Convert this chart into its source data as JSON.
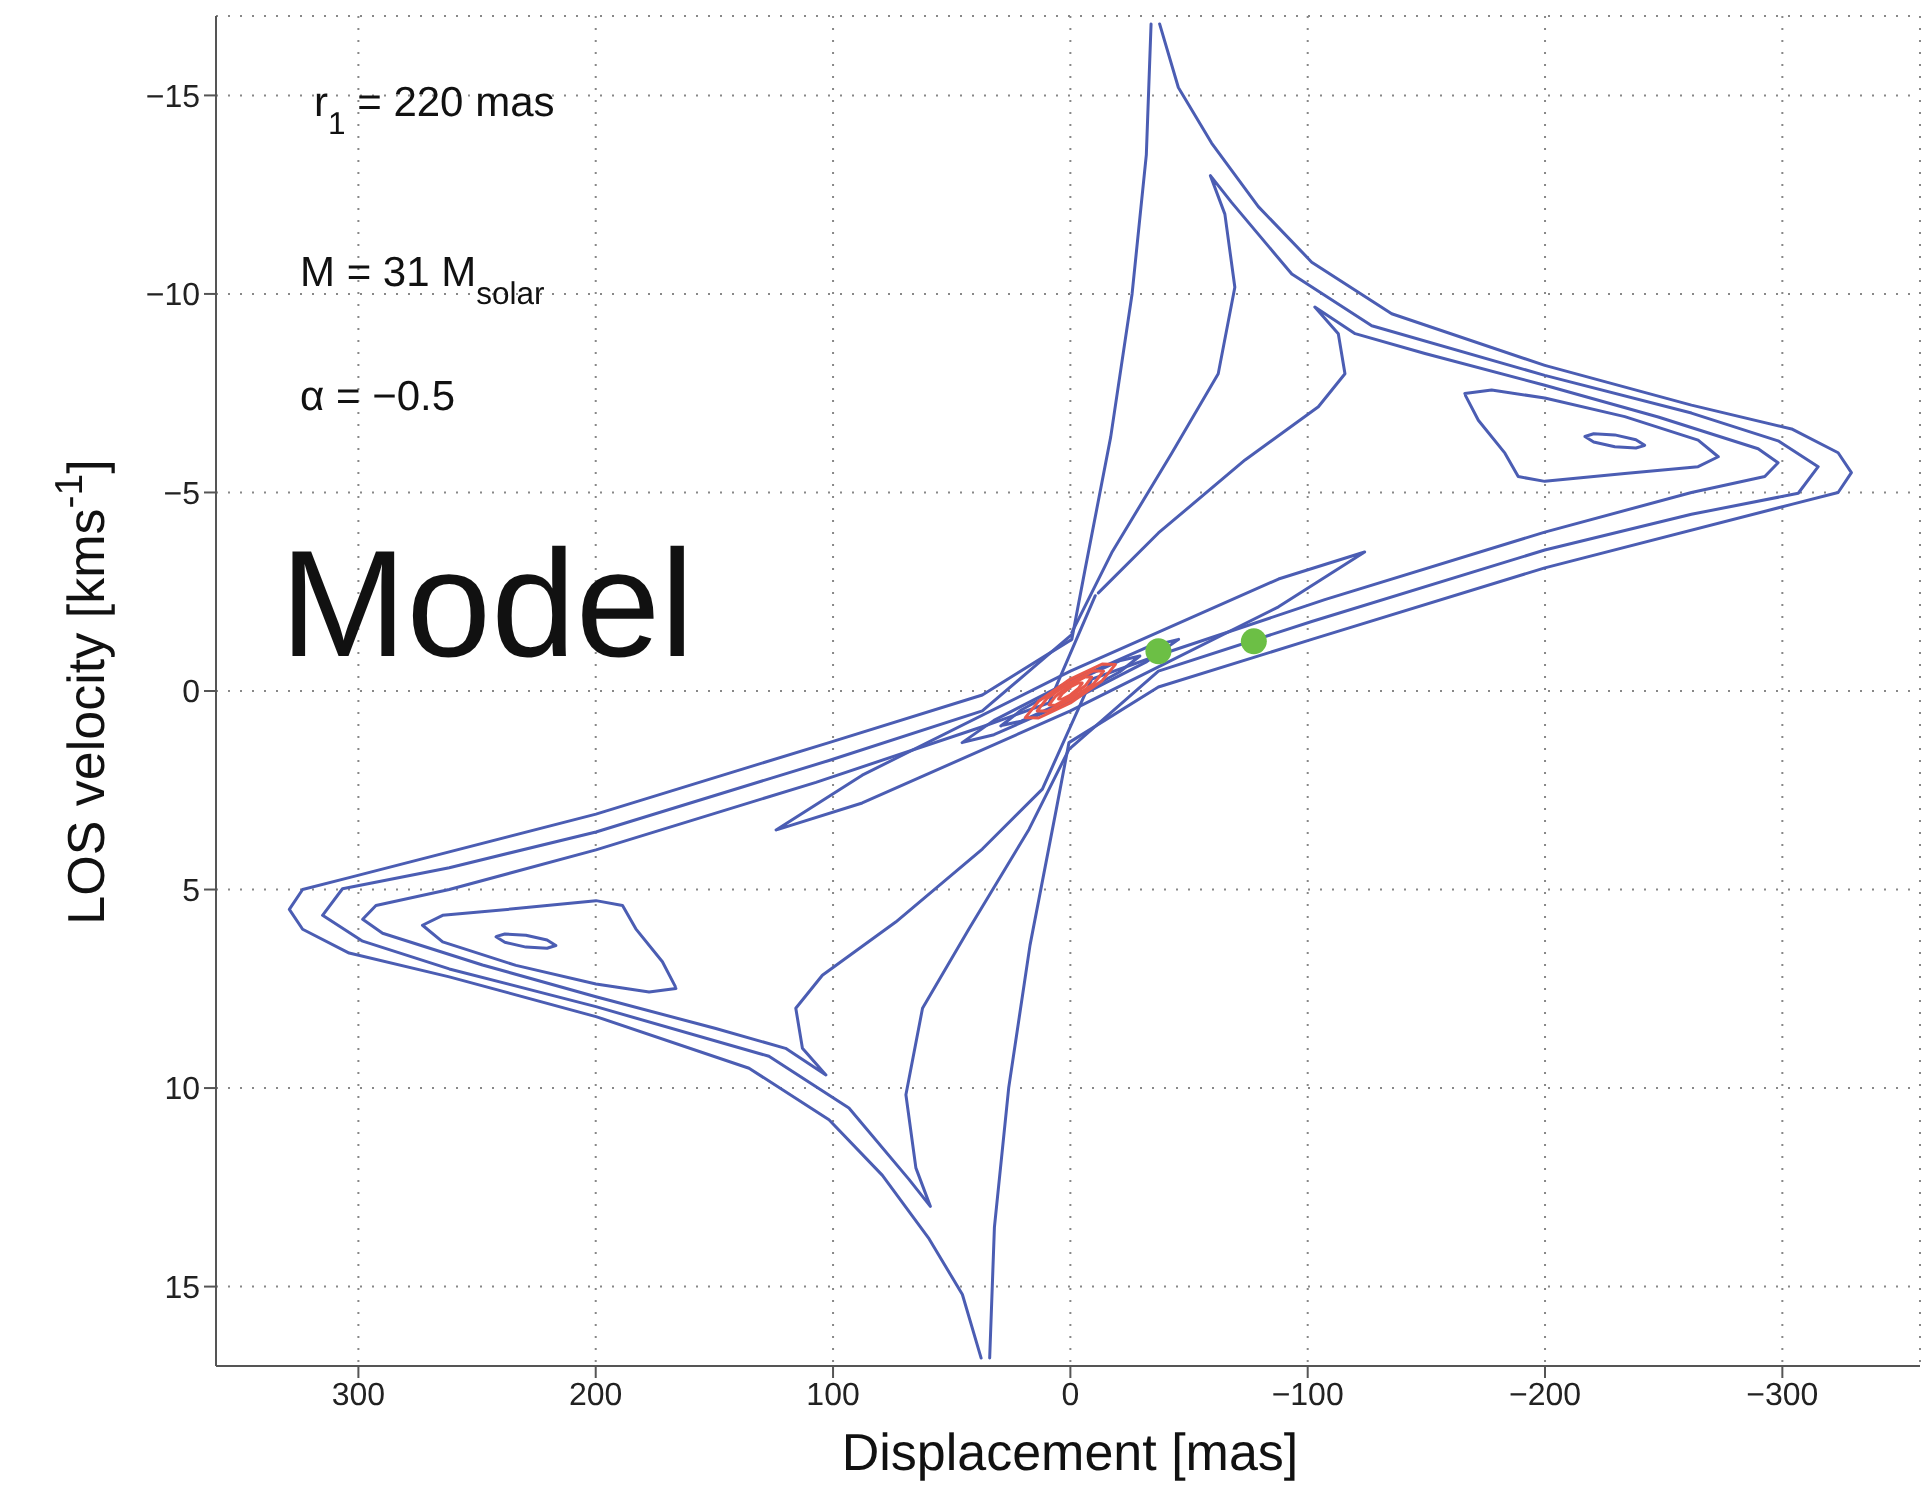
{
  "chart_data": {
    "type": "line",
    "xlabel": "Displacement [mas]",
    "ylabel": "LOS velocity [kms$^{-1}$]",
    "annotations": [
      "r$_{1}$ = 220 mas",
      "M = 31 M$_{solar}$",
      "α = −0.5",
      "Model"
    ],
    "xlim": [
      360,
      -358
    ],
    "xticks": [
      300,
      200,
      100,
      0,
      -100,
      -200,
      -300
    ],
    "ylim": [
      17,
      -17
    ],
    "yticks": [
      -15,
      -10,
      -5,
      0,
      5,
      10,
      15
    ],
    "grid": true,
    "marker": "none",
    "series": [
      {
        "color": "#4b5db3",
        "x": [
          -37.6,
          -45.5,
          -59.5,
          -79.2,
          -101.7,
          -135.4,
          -199.9,
          -261.7,
          -303.9,
          -323.5,
          -329.1,
          -323.5,
          -303.9,
          -199.9,
          -101.7,
          -37.1,
          0.6,
          6,
          17,
          26,
          32,
          34
        ],
        "values": [
          -16.8,
          -15.2,
          -13.8,
          -12.2,
          -10.8,
          -9.5,
          -8.2,
          -7.2,
          -6.6,
          -6.0,
          -5.5,
          -5.0,
          -4.7,
          -3.1,
          -1.3,
          -0.1,
          1.3,
          3.0,
          6.4,
          10.0,
          13.5,
          16.8
        ]
      },
      {
        "color": "#4b5db3",
        "x": [
          37.6,
          45.5,
          59.5,
          79.2,
          101.7,
          135.4,
          199.9,
          261.7,
          303.9,
          323.5,
          329.1,
          323.5,
          303.9,
          199.9,
          101.7,
          37.1,
          -0.6,
          -6,
          -17,
          -26,
          -32,
          -34
        ],
        "values": [
          16.8,
          15.2,
          13.8,
          12.2,
          10.8,
          9.5,
          8.2,
          7.2,
          6.6,
          6.0,
          5.5,
          5.0,
          4.7,
          3.1,
          1.3,
          0.1,
          -1.3,
          -3.0,
          -6.4,
          -10.0,
          -13.5,
          -16.8
        ]
      },
      {
        "color": "#4b5db3",
        "x": [
          -0.6,
          -17.4,
          -42.7,
          -62.3,
          -69.3,
          -65.1,
          -59,
          -68,
          -93.3,
          -127,
          -199.9,
          -261.7,
          -298.2,
          -315.1,
          -306.7,
          -261.7,
          -199.9,
          -101.7,
          -37.1,
          0.6,
          17.4,
          42.7,
          62.3,
          69.3,
          65.1,
          59,
          68,
          93.3,
          127,
          199.9,
          261.7,
          298.2,
          315.1,
          306.7,
          261.7,
          199.9,
          101.7,
          37.1,
          -0.2
        ],
        "values": [
          -1.47,
          -3.48,
          -5.99,
          -7.99,
          -10.17,
          -12.01,
          -12.98,
          -12.3,
          -10.5,
          -9.2,
          -7.95,
          -7.0,
          -6.3,
          -5.65,
          -4.98,
          -4.45,
          -3.55,
          -1.75,
          -0.5,
          1.47,
          3.48,
          5.99,
          7.99,
          10.17,
          12.01,
          12.98,
          12.3,
          10.5,
          9.2,
          7.95,
          7.0,
          6.3,
          5.65,
          4.98,
          4.45,
          3.55,
          1.75,
          0.5,
          -1.4
        ]
      },
      {
        "color": "#4b5db3",
        "x": [
          -11.8,
          -37.1,
          -73.6,
          -104.5,
          -115.7,
          -112.9,
          -103,
          -120,
          -149.4,
          -199.9,
          -247.7,
          -289.8,
          -298.2,
          -292.6,
          -261.7,
          -199.9,
          -107.2,
          -37.1,
          -9,
          11.8,
          37.1,
          73.6,
          104.5,
          115.7,
          112.9,
          103,
          120,
          149.4,
          199.9,
          247.7,
          289.8,
          298.2,
          292.6,
          261.7,
          199.9,
          107.2,
          37.1,
          9,
          -10.5
        ],
        "values": [
          -2.47,
          -3.98,
          -5.82,
          -7.16,
          -7.99,
          -9.0,
          -9.67,
          -9.0,
          -8.5,
          -7.7,
          -6.9,
          -6.1,
          -5.75,
          -5.4,
          -5.0,
          -4.0,
          -2.3,
          -0.9,
          -0.3,
          2.47,
          3.98,
          5.82,
          7.16,
          7.99,
          9.0,
          9.67,
          9.0,
          8.5,
          7.7,
          6.9,
          6.1,
          5.75,
          5.4,
          5.0,
          4.0,
          2.3,
          0.9,
          0.3,
          -2.4
        ]
      },
      {
        "color": "#4b5db3",
        "x": [
          -166.2,
          -177.5,
          -199.9,
          -233.6,
          -264.5,
          -273,
          -264.5,
          -233.6,
          -199.9,
          -188.7,
          -183.1,
          -171.9,
          -166.5
        ],
        "values": [
          -7.49,
          -7.58,
          -7.38,
          -6.91,
          -6.32,
          -5.9,
          -5.65,
          -5.48,
          -5.28,
          -5.4,
          -5.99,
          -6.82,
          -7.44
        ]
      },
      {
        "color": "#4b5db3",
        "x": [
          166.2,
          177.5,
          199.9,
          233.6,
          264.5,
          273,
          264.5,
          233.6,
          199.9,
          188.7,
          183.1,
          171.9,
          166.5
        ],
        "values": [
          7.49,
          7.58,
          7.38,
          6.91,
          6.32,
          5.9,
          5.65,
          5.48,
          5.28,
          5.4,
          5.99,
          6.82,
          7.44
        ]
      },
      {
        "color": "#4b5db3",
        "x": [
          -242,
          -238.3,
          -229.4,
          -220.5,
          -216.8,
          -220.5,
          -229.4,
          -238.3,
          -241.8
        ],
        "values": [
          -6.19,
          -6.33,
          -6.45,
          -6.48,
          -6.41,
          -6.27,
          -6.15,
          -6.12,
          -6.18
        ]
      },
      {
        "color": "#4b5db3",
        "x": [
          242,
          238.3,
          229.4,
          220.5,
          216.8,
          220.5,
          229.4,
          238.3,
          241.8
        ],
        "values": [
          6.19,
          6.33,
          6.45,
          6.48,
          6.41,
          6.27,
          6.15,
          6.12,
          6.18
        ]
      },
      {
        "color": "#4b5db3",
        "x": [
          124,
          87.7,
          0,
          -87.7,
          -124,
          -87.7,
          0,
          87.7,
          123.5
        ],
        "values": [
          3.5,
          2.12,
          -0.5,
          -2.82,
          -3.5,
          -2.12,
          0.5,
          2.82,
          3.49
        ]
      },
      {
        "color": "#4b5db3",
        "x": [
          45.6,
          32.2,
          0,
          -32.2,
          -45.6,
          -32.2,
          0,
          32.2,
          45.3
        ],
        "values": [
          1.3,
          0.74,
          -0.25,
          -1.1,
          -1.3,
          -0.74,
          0.25,
          1.1,
          1.29
        ]
      },
      {
        "color": "#4b5db3",
        "x": [
          29.3,
          20.7,
          0,
          -20.7,
          -29.3,
          -20.7,
          0,
          20.7,
          29.1
        ],
        "values": [
          0.88,
          0.48,
          -0.2,
          -0.76,
          -0.88,
          -0.48,
          0.2,
          0.76,
          0.87
        ]
      },
      {
        "color": "#e8584a",
        "x": [
          19,
          13.4,
          0,
          -13.4,
          -19,
          -13.4,
          0,
          13.4,
          18.8
        ],
        "values": [
          0.67,
          0.26,
          -0.3,
          -0.68,
          -0.67,
          -0.26,
          0.3,
          0.68,
          0.67
        ]
      },
      {
        "color": "#e8584a",
        "x": [
          14,
          9.9,
          0,
          -9.9,
          -14,
          -9.9,
          0,
          9.9,
          13.8
        ],
        "values": [
          0.5,
          0.19,
          -0.22,
          -0.51,
          -0.5,
          -0.19,
          0.22,
          0.51,
          0.5
        ]
      },
      {
        "color": "#e8584a",
        "x": [
          9,
          6.4,
          0,
          -6.4,
          -9,
          -6.4,
          0,
          6.4,
          8.9
        ],
        "values": [
          0.35,
          0.14,
          -0.15,
          -0.36,
          -0.35,
          -0.14,
          0.15,
          0.36,
          0.35
        ]
      },
      {
        "color": "#e8584a",
        "x": [
          5,
          3.5,
          0,
          -3.5,
          -5,
          -3.5,
          0,
          3.5,
          4.9
        ],
        "values": [
          0.2,
          0.07,
          -0.1,
          -0.21,
          -0.2,
          -0.07,
          0.1,
          0.21,
          0.2
        ]
      },
      {
        "type": "scatter",
        "marker": "circle",
        "color": "#6cbf45",
        "x": [
          -37.1,
          -77.3
        ],
        "values": [
          -1.0,
          -1.25
        ]
      }
    ]
  }
}
